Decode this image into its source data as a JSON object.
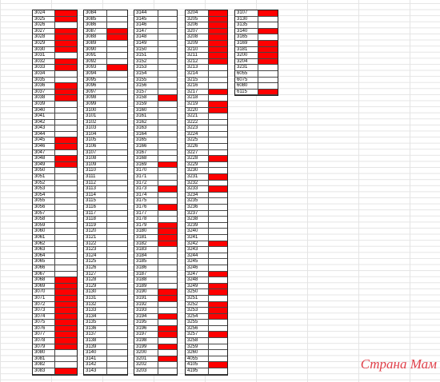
{
  "blocks": [
    {
      "codes": [
        3024,
        3025,
        3026,
        3027,
        3028,
        3029,
        3030,
        3031,
        3032,
        3033,
        3034,
        3035,
        3036,
        3037,
        3038,
        3039,
        3040,
        3041,
        3042,
        3043,
        3044,
        3045,
        3046,
        3047,
        3048,
        3049,
        3050,
        3051,
        3052,
        3053,
        3054,
        3055,
        3056,
        3057,
        3058,
        3059,
        3060,
        3061,
        3062,
        3063,
        3064,
        3065,
        3066,
        3067,
        3068,
        3069,
        3070,
        3071,
        3072,
        3073,
        3074,
        3075,
        3076,
        3077,
        3078,
        3079,
        3080,
        3081,
        3082,
        3083
      ],
      "marked": [
        1,
        1,
        0,
        1,
        1,
        1,
        1,
        0,
        1,
        1,
        0,
        0,
        1,
        1,
        1,
        0,
        0,
        0,
        0,
        0,
        0,
        1,
        1,
        0,
        1,
        1,
        0,
        0,
        0,
        0,
        0,
        0,
        0,
        0,
        0,
        0,
        0,
        0,
        0,
        0,
        0,
        0,
        0,
        0,
        1,
        1,
        1,
        1,
        1,
        1,
        1,
        1,
        1,
        1,
        1,
        1,
        0,
        0,
        0,
        1
      ]
    },
    {
      "codes": [
        3084,
        3085,
        3086,
        3087,
        3088,
        3089,
        3090,
        3091,
        3092,
        3093,
        3094,
        3095,
        3096,
        3097,
        3098,
        3099,
        3100,
        3101,
        3102,
        3103,
        3104,
        3105,
        3106,
        3107,
        3108,
        3109,
        3110,
        3111,
        3112,
        3113,
        3114,
        3115,
        3116,
        3117,
        3118,
        3119,
        3120,
        3121,
        3122,
        3123,
        3124,
        3125,
        3126,
        3127,
        3128,
        3129,
        3130,
        3131,
        3132,
        3133,
        3134,
        3135,
        3136,
        3137,
        3138,
        3139,
        3140,
        3141,
        3142,
        3143
      ],
      "marked": [
        0,
        0,
        0,
        1,
        1,
        0,
        0,
        0,
        0,
        1,
        0,
        0,
        0,
        0,
        0,
        0,
        0,
        0,
        0,
        0,
        0,
        0,
        0,
        0,
        0,
        0,
        0,
        0,
        0,
        0,
        0,
        0,
        0,
        0,
        0,
        0,
        0,
        0,
        0,
        0,
        0,
        0,
        0,
        0,
        0,
        0,
        0,
        0,
        0,
        0,
        0,
        0,
        0,
        0,
        0,
        0,
        0,
        0,
        0,
        0
      ]
    },
    {
      "codes": [
        3144,
        3145,
        3146,
        3147,
        3148,
        3149,
        3150,
        3151,
        3152,
        3153,
        3154,
        3155,
        3156,
        3157,
        3158,
        3159,
        3160,
        3161,
        3162,
        3163,
        3164,
        3165,
        3166,
        3167,
        3168,
        3169,
        3170,
        3171,
        3172,
        3173,
        3174,
        3175,
        3176,
        3177,
        3178,
        3179,
        3180,
        3181,
        3182,
        3183,
        3184,
        3185,
        3186,
        3187,
        3188,
        3189,
        3190,
        3191,
        3192,
        3193,
        3194,
        3195,
        3196,
        3197,
        3198,
        3199,
        3200,
        3201,
        3202,
        3203
      ],
      "marked": [
        0,
        0,
        0,
        0,
        0,
        0,
        0,
        0,
        0,
        0,
        0,
        0,
        0,
        0,
        1,
        0,
        0,
        0,
        0,
        0,
        0,
        0,
        0,
        0,
        0,
        1,
        0,
        0,
        0,
        1,
        0,
        0,
        1,
        0,
        0,
        1,
        1,
        1,
        1,
        0,
        0,
        0,
        0,
        0,
        0,
        0,
        1,
        1,
        0,
        0,
        1,
        0,
        1,
        1,
        0,
        1,
        0,
        1,
        0,
        0
      ]
    },
    {
      "codes": [
        3204,
        3205,
        3206,
        3207,
        3208,
        3209,
        3210,
        3211,
        3212,
        3213,
        3214,
        3215,
        3216,
        3217,
        3218,
        3219,
        3220,
        3221,
        3222,
        3223,
        3224,
        3225,
        3226,
        3227,
        3228,
        3229,
        3230,
        3231,
        3232,
        3233,
        3234,
        3235,
        3236,
        3237,
        3238,
        3239,
        3240,
        3241,
        3242,
        3243,
        3244,
        3245,
        3246,
        3247,
        3248,
        3249,
        3250,
        3251,
        3252,
        3253,
        3254,
        3255,
        3256,
        3257,
        3258,
        3259,
        3260,
        4055,
        4105,
        4195
      ],
      "marked": [
        1,
        1,
        1,
        1,
        1,
        1,
        1,
        1,
        1,
        0,
        0,
        0,
        0,
        1,
        0,
        1,
        1,
        0,
        0,
        0,
        0,
        0,
        0,
        0,
        1,
        0,
        0,
        1,
        0,
        1,
        0,
        0,
        0,
        0,
        0,
        0,
        0,
        0,
        1,
        0,
        0,
        0,
        0,
        1,
        0,
        1,
        1,
        0,
        1,
        1,
        1,
        0,
        0,
        1,
        0,
        0,
        0,
        0,
        1,
        0
      ]
    },
    {
      "codes": [
        3107,
        3130,
        3135,
        3140,
        3165,
        3169,
        3181,
        3200,
        3204,
        3231,
        6055,
        6075,
        6080,
        6115
      ],
      "marked": [
        1,
        0,
        0,
        1,
        0,
        1,
        1,
        1,
        1,
        0,
        0,
        0,
        0,
        1
      ]
    }
  ],
  "watermark": "Страна Мам"
}
